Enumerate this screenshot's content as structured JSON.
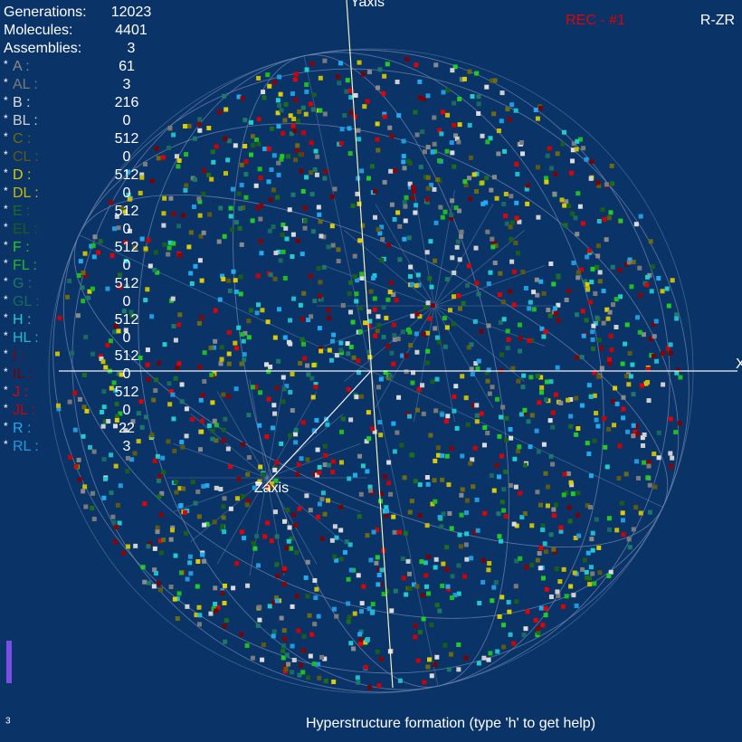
{
  "stats": [
    {
      "label": "Generations:",
      "value": "12023"
    },
    {
      "label": "Molecules:",
      "value": "4401"
    },
    {
      "label": "Assemblies:",
      "value": "3"
    }
  ],
  "species_marker": "*",
  "species": [
    {
      "name": "A :",
      "count": "61",
      "color": "#8a8a8a"
    },
    {
      "name": "AL :",
      "count": "3",
      "color": "#7a7a7a"
    },
    {
      "name": "B :",
      "count": "216",
      "color": "#dcdcdc"
    },
    {
      "name": "BL :",
      "count": "0",
      "color": "#cfcfcf"
    },
    {
      "name": "C :",
      "count": "512",
      "color": "#6e6a10"
    },
    {
      "name": "CL :",
      "count": "0",
      "color": "#5e5a10"
    },
    {
      "name": "D :",
      "count": "512",
      "color": "#dccc00"
    },
    {
      "name": "DL :",
      "count": "0",
      "color": "#c8bc00"
    },
    {
      "name": "E :",
      "count": "512",
      "color": "#1c6e1c"
    },
    {
      "name": "EL :",
      "count": "0",
      "color": "#1a5e1a"
    },
    {
      "name": "F :",
      "count": "512",
      "color": "#22cc22"
    },
    {
      "name": "FL :",
      "count": "0",
      "color": "#20bb20"
    },
    {
      "name": "G :",
      "count": "512",
      "color": "#1e7868"
    },
    {
      "name": "GL :",
      "count": "0",
      "color": "#1a6a5e"
    },
    {
      "name": "H :",
      "count": "512",
      "color": "#22cccc"
    },
    {
      "name": "HL :",
      "count": "0",
      "color": "#22bbcc"
    },
    {
      "name": "I :",
      "count": "512",
      "color": "#8c0000"
    },
    {
      "name": "IL :",
      "count": "0",
      "color": "#7a0000"
    },
    {
      "name": "J :",
      "count": "512",
      "color": "#e00000"
    },
    {
      "name": "JL :",
      "count": "0",
      "color": "#cc0000"
    },
    {
      "name": "R :",
      "count": "22",
      "color": "#22aaee"
    },
    {
      "name": "RL :",
      "count": "3",
      "color": "#2299dd"
    }
  ],
  "axes": {
    "y": "Yaxis",
    "z": "Zaxis",
    "x": "X"
  },
  "record": "REC - #1",
  "mode": "R-ZR",
  "footer": "Hyperstructure formation (type 'h' to get help)",
  "corner_number": "3"
}
